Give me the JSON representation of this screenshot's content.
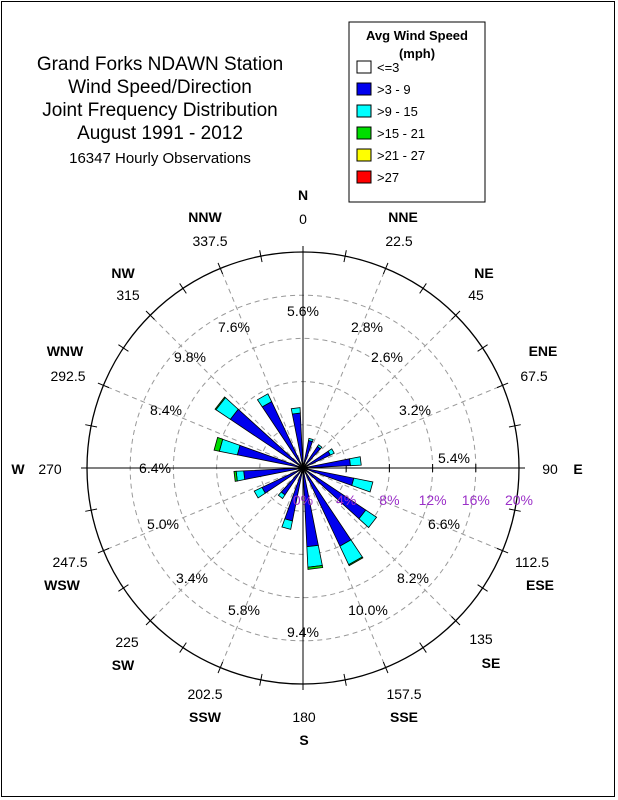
{
  "title_lines": [
    "Grand Forks NDAWN Station",
    "Wind Speed/Direction",
    "Joint Frequency Distribution",
    "August 1991 - 2012"
  ],
  "subtitle": "16347 Hourly Observations",
  "legend": {
    "title_line1": "Avg Wind Speed",
    "title_line2": "(mph)",
    "items": [
      {
        "label": "<=3",
        "color": "#ffffff"
      },
      {
        "label": ">3 - 9",
        "color": "#0000ee"
      },
      {
        "label": ">9 - 15",
        "color": "#00ffff"
      },
      {
        "label": ">15 - 21",
        "color": "#00dd00"
      },
      {
        "label": ">21 - 27",
        "color": "#ffff00"
      },
      {
        "label": ">27",
        "color": "#ff0000"
      }
    ]
  },
  "directions": [
    {
      "abbr": "N",
      "deg": "0",
      "pct": "5.6%"
    },
    {
      "abbr": "NNE",
      "deg": "22.5",
      "pct": "2.8%"
    },
    {
      "abbr": "NE",
      "deg": "45",
      "pct": "2.6%"
    },
    {
      "abbr": "ENE",
      "deg": "67.5",
      "pct": "3.2%"
    },
    {
      "abbr": "E",
      "deg": "90",
      "pct": "5.4%"
    },
    {
      "abbr": "ESE",
      "deg": "112.5",
      "pct": "6.6%"
    },
    {
      "abbr": "SE",
      "deg": "135",
      "pct": "8.2%"
    },
    {
      "abbr": "SSE",
      "deg": "157.5",
      "pct": "10.0%"
    },
    {
      "abbr": "S",
      "deg": "180",
      "pct": "9.4%"
    },
    {
      "abbr": "SSW",
      "deg": "202.5",
      "pct": "5.8%"
    },
    {
      "abbr": "SW",
      "deg": "225",
      "pct": "3.4%"
    },
    {
      "abbr": "WSW",
      "deg": "247.5",
      "pct": "5.0%"
    },
    {
      "abbr": "W",
      "deg": "270",
      "pct": "6.4%"
    },
    {
      "abbr": "WNW",
      "deg": "292.5",
      "pct": "8.4%"
    },
    {
      "abbr": "NW",
      "deg": "315",
      "pct": "9.8%"
    },
    {
      "abbr": "NNW",
      "deg": "337.5",
      "pct": "7.6%"
    }
  ],
  "chart_data": {
    "type": "wind-rose",
    "radial_axis": {
      "ticks": [
        "0%",
        "4%",
        "8%",
        "12%",
        "16%",
        "20%"
      ],
      "max": 20,
      "unit": "%"
    },
    "speed_bins": [
      "<=3",
      ">3 - 9",
      ">9 - 15",
      ">15 - 21",
      ">21 - 27",
      ">27"
    ],
    "sector_width_deg": 22.5,
    "rotation_offset_deg": -7,
    "sectors": [
      {
        "direction_deg": 0,
        "label": "N",
        "total": 5.6,
        "values": [
          0.5,
          4.6,
          0.5,
          0,
          0,
          0
        ]
      },
      {
        "direction_deg": 22.5,
        "label": "NNE",
        "total": 2.8,
        "values": [
          0.3,
          2.3,
          0.2,
          0,
          0,
          0
        ]
      },
      {
        "direction_deg": 45,
        "label": "NE",
        "total": 2.6,
        "values": [
          0.3,
          2.1,
          0.2,
          0,
          0,
          0
        ]
      },
      {
        "direction_deg": 67.5,
        "label": "ENE",
        "total": 3.2,
        "values": [
          0.3,
          2.5,
          0.4,
          0,
          0,
          0
        ]
      },
      {
        "direction_deg": 90,
        "label": "E",
        "total": 5.4,
        "values": [
          0.4,
          4.0,
          1.0,
          0,
          0,
          0
        ]
      },
      {
        "direction_deg": 112.5,
        "label": "ESE",
        "total": 6.6,
        "values": [
          0.4,
          4.4,
          1.8,
          0,
          0,
          0
        ]
      },
      {
        "direction_deg": 135,
        "label": "SE",
        "total": 8.2,
        "values": [
          0.4,
          6.6,
          1.2,
          0,
          0,
          0
        ]
      },
      {
        "direction_deg": 157.5,
        "label": "SSE",
        "total": 10.0,
        "values": [
          0.5,
          7.5,
          1.9,
          0.1,
          0,
          0
        ]
      },
      {
        "direction_deg": 180,
        "label": "S",
        "total": 9.4,
        "values": [
          0.5,
          6.8,
          1.9,
          0.2,
          0,
          0
        ]
      },
      {
        "direction_deg": 202.5,
        "label": "SSW",
        "total": 5.8,
        "values": [
          0.4,
          4.6,
          0.8,
          0,
          0,
          0
        ]
      },
      {
        "direction_deg": 225,
        "label": "SW",
        "total": 3.4,
        "values": [
          0.3,
          2.7,
          0.4,
          0,
          0,
          0
        ]
      },
      {
        "direction_deg": 247.5,
        "label": "WSW",
        "total": 5.0,
        "values": [
          0.4,
          3.8,
          0.8,
          0,
          0,
          0
        ]
      },
      {
        "direction_deg": 270,
        "label": "W",
        "total": 6.4,
        "values": [
          0.4,
          5.1,
          0.7,
          0.2,
          0,
          0
        ]
      },
      {
        "direction_deg": 292.5,
        "label": "WNW",
        "total": 8.4,
        "values": [
          0.4,
          5.8,
          1.7,
          0.5,
          0,
          0
        ]
      },
      {
        "direction_deg": 315,
        "label": "NW",
        "total": 9.8,
        "values": [
          0.4,
          7.7,
          1.6,
          0.1,
          0,
          0
        ]
      },
      {
        "direction_deg": 337.5,
        "label": "NNW",
        "total": 7.6,
        "values": [
          0.5,
          6.3,
          0.8,
          0,
          0,
          0
        ]
      }
    ]
  }
}
